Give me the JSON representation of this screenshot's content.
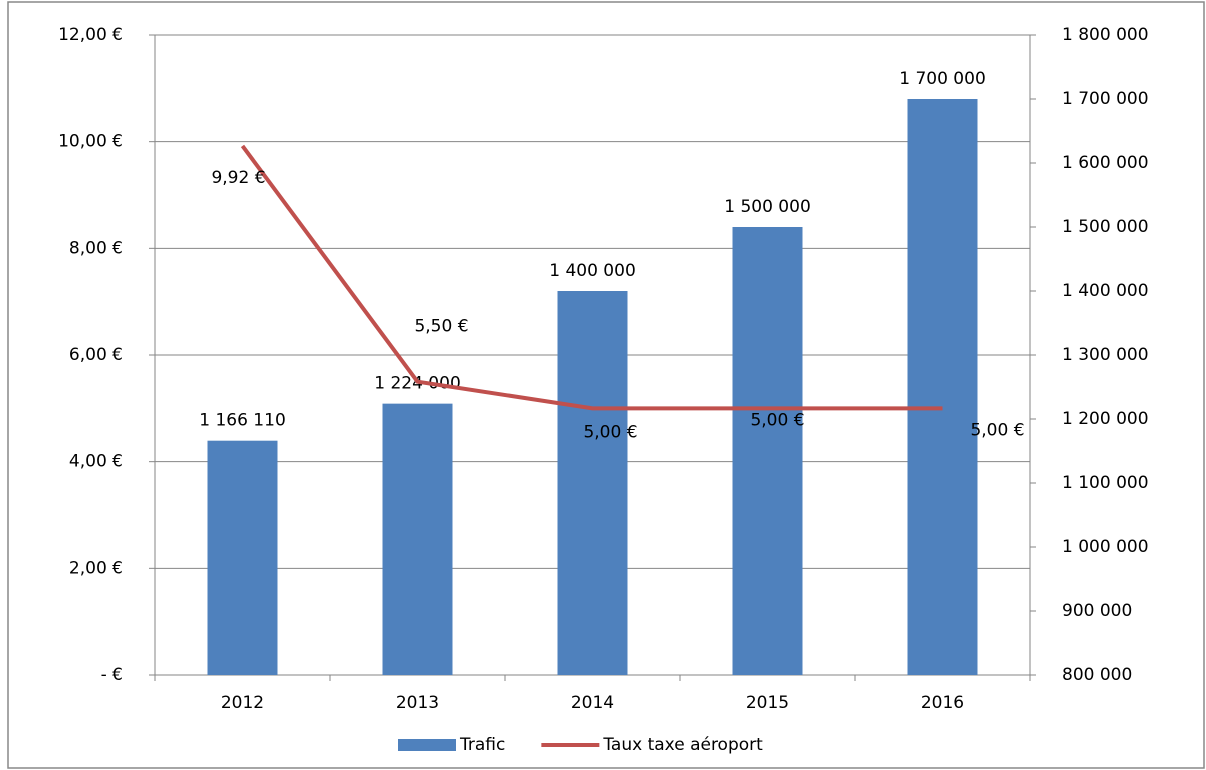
{
  "chart_data": {
    "type": "bar",
    "categories": [
      "2012",
      "2013",
      "2014",
      "2015",
      "2016"
    ],
    "series": [
      {
        "name": "Trafic",
        "type": "bar",
        "axis": "y2",
        "color": "#4f81bd",
        "values": [
          1166110,
          1224000,
          1400000,
          1500000,
          1700000
        ],
        "value_labels": [
          "1 166 110",
          "1 224 000",
          "1 400 000",
          "1 500 000",
          "1 700 000"
        ]
      },
      {
        "name": "Taux taxe aéroport",
        "type": "line",
        "axis": "y",
        "color": "#c0504d",
        "values": [
          9.92,
          5.5,
          5,
          5,
          5
        ],
        "value_labels": [
          "9,92 €",
          "5,50 €",
          "5,00 €",
          "5,00 €",
          "5,00 €"
        ]
      }
    ],
    "ylim": [
      0,
      12
    ],
    "yticks": [
      {
        "value": 0,
        "label": "-   €"
      },
      {
        "value": 2,
        "label": "2,00 €"
      },
      {
        "value": 4,
        "label": "4,00 €"
      },
      {
        "value": 6,
        "label": "6,00 €"
      },
      {
        "value": 8,
        "label": "8,00 €"
      },
      {
        "value": 10,
        "label": "10,00 €"
      },
      {
        "value": 12,
        "label": "12,00 €"
      }
    ],
    "y2lim": [
      800000,
      1800000
    ],
    "y2ticks": [
      {
        "value": 800000,
        "label": "800 000"
      },
      {
        "value": 900000,
        "label": "900 000"
      },
      {
        "value": 1000000,
        "label": "1 000 000"
      },
      {
        "value": 1100000,
        "label": "1 100 000"
      },
      {
        "value": 1200000,
        "label": "1 200 000"
      },
      {
        "value": 1300000,
        "label": "1 300 000"
      },
      {
        "value": 1400000,
        "label": "1 400 000"
      },
      {
        "value": 1500000,
        "label": "1 500 000"
      },
      {
        "value": 1600000,
        "label": "1 600 000"
      },
      {
        "value": 1700000,
        "label": "1 700 000"
      },
      {
        "value": 1800000,
        "label": "1 800 000"
      }
    ],
    "grid": true,
    "legend": "bottom"
  }
}
